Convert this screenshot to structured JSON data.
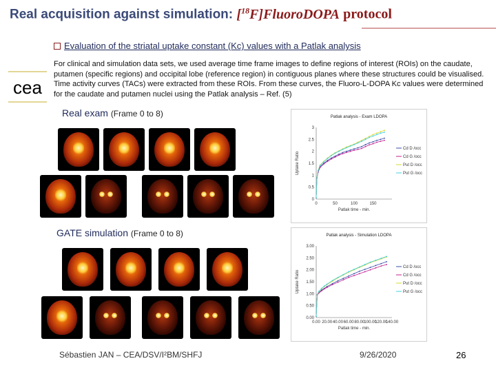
{
  "title": {
    "main": "Real acquisition against simulation:",
    "isotope_prefix": "[",
    "isotope_mass": "18",
    "isotope_rest": "F]Fluoro",
    "dopa": "DOPA",
    "protocol": "protocol"
  },
  "bullet": "Evaluation of the striatal uptake constant (Kc) values with a Patlak analysis",
  "body": "For clinical and simulation data sets, we used average time frame images to define regions of interest (ROIs) on the caudate, putamen (specific regions) and occipital lobe (reference region) in contiguous planes where these structures could be visualised. Time activity curves (TACs) were extracted from these ROIs. From these curves, the Fluoro-L-DOPA Kc values were determined for the caudate and putamen nuclei using the Patlak analysis – Ref. (5)",
  "logo_text": "cea",
  "real": {
    "label": "Real exam",
    "sub": "(Frame 0 to 8)"
  },
  "gate": {
    "label": "GATE simulation",
    "sub": "(Frame 0 to 8)"
  },
  "footer": {
    "author": "Sébastien JAN – CEA/DSV/I²BM/SHFJ",
    "date": "9/26/2020",
    "page": "26"
  },
  "colors": {
    "title": "#3b4a78",
    "accent": "#8b1a1a",
    "cd_d": "#3a4ea8",
    "cd_g": "#c02090",
    "put_d": "#d8d830",
    "put_g": "#40d0e0"
  },
  "chart_data": [
    {
      "type": "line",
      "title": "Patlak analysis - Exam LDOPA",
      "xlabel": "Patlak time - min.",
      "ylabel": "Uptake Ratio",
      "xlim": [
        0,
        200
      ],
      "ylim": [
        0,
        3
      ],
      "xticks": [
        "0",
        "50",
        "100",
        "150"
      ],
      "yticks": [
        "0",
        "0.5",
        "1",
        "1.5",
        "2",
        "2.5",
        "3"
      ],
      "legend_position": "right",
      "x": [
        0,
        2,
        5,
        10,
        20,
        30,
        40,
        50,
        60,
        70,
        80,
        90,
        100,
        110,
        120,
        130,
        140,
        150,
        160,
        170,
        180
      ],
      "series": [
        {
          "name": "Cd D /occ",
          "color": "#3a4ea8",
          "values": [
            0.05,
            0.9,
            1.15,
            1.35,
            1.5,
            1.62,
            1.72,
            1.8,
            1.88,
            1.95,
            2.0,
            2.05,
            2.1,
            2.15,
            2.2,
            2.28,
            2.35,
            2.4,
            2.46,
            2.5,
            2.55
          ]
        },
        {
          "name": "Cd G /occ",
          "color": "#c02090",
          "values": [
            0.05,
            0.88,
            1.12,
            1.32,
            1.47,
            1.58,
            1.68,
            1.76,
            1.84,
            1.9,
            1.95,
            2.0,
            2.04,
            2.08,
            2.12,
            2.2,
            2.27,
            2.32,
            2.38,
            2.42,
            2.46
          ]
        },
        {
          "name": "Put D /occ",
          "color": "#d8d830",
          "values": [
            0.05,
            0.92,
            1.2,
            1.42,
            1.58,
            1.72,
            1.84,
            1.94,
            2.02,
            2.1,
            2.18,
            2.24,
            2.3,
            2.38,
            2.46,
            2.54,
            2.62,
            2.7,
            2.76,
            2.82,
            2.88
          ]
        },
        {
          "name": "Put G /occ",
          "color": "#40d0e0",
          "values": [
            0.05,
            0.9,
            1.18,
            1.4,
            1.56,
            1.7,
            1.82,
            1.92,
            2.0,
            2.08,
            2.15,
            2.22,
            2.28,
            2.35,
            2.42,
            2.5,
            2.58,
            2.64,
            2.7,
            2.76,
            2.8
          ]
        }
      ]
    },
    {
      "type": "line",
      "title": "Patlak analysis - Simulation LDOPA",
      "xlabel": "Patlak time - min.",
      "ylabel": "Uptake Ratio",
      "xlim": [
        0,
        140
      ],
      "ylim": [
        0,
        3
      ],
      "xticks": [
        "0.00",
        "20.00",
        "40.00",
        "60.00",
        "80.00",
        "100.00",
        "120.00",
        "140.00"
      ],
      "yticks": [
        "0.00",
        "0.50",
        "1.00",
        "1.50",
        "2.00",
        "2.50",
        "3.00"
      ],
      "legend_position": "right",
      "x": [
        0,
        2,
        5,
        10,
        15,
        20,
        30,
        40,
        50,
        60,
        70,
        80,
        90,
        100,
        110,
        120,
        130
      ],
      "series": [
        {
          "name": "Cd D /occ",
          "color": "#3a4ea8",
          "values": [
            0.05,
            0.95,
            1.05,
            1.15,
            1.22,
            1.3,
            1.42,
            1.54,
            1.64,
            1.74,
            1.84,
            1.94,
            2.02,
            2.1,
            2.18,
            2.26,
            2.34
          ]
        },
        {
          "name": "Cd G /occ",
          "color": "#c02090",
          "values": [
            0.05,
            0.94,
            1.03,
            1.12,
            1.2,
            1.26,
            1.38,
            1.48,
            1.58,
            1.68,
            1.76,
            1.84,
            1.92,
            2.0,
            2.08,
            2.16,
            2.22
          ]
        },
        {
          "name": "Put D /occ",
          "color": "#d8d830",
          "values": [
            0.05,
            0.96,
            1.08,
            1.2,
            1.3,
            1.38,
            1.52,
            1.66,
            1.78,
            1.9,
            2.0,
            2.1,
            2.2,
            2.3,
            2.38,
            2.46,
            2.54
          ]
        },
        {
          "name": "Put G /occ",
          "color": "#40d0e0",
          "values": [
            0.05,
            0.97,
            1.1,
            1.22,
            1.32,
            1.4,
            1.55,
            1.68,
            1.8,
            1.92,
            2.02,
            2.12,
            2.22,
            2.32,
            2.4,
            2.48,
            2.56
          ]
        }
      ]
    }
  ]
}
